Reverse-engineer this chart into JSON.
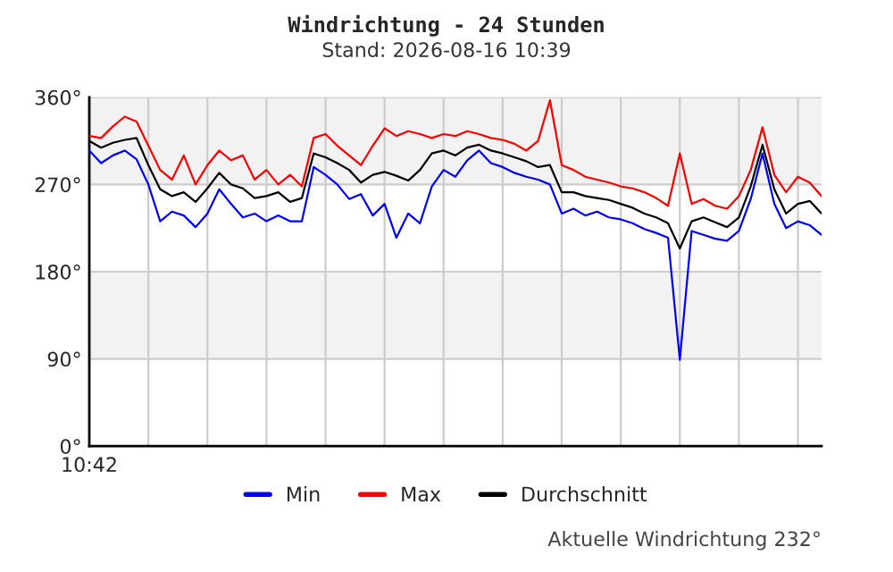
{
  "chart_data": {
    "type": "line",
    "title": "Windrichtung - 24 Stunden",
    "subtitle": "Stand: 2026-08-16 10:39",
    "annotations": [
      "10:42",
      "Aktuelle Windrichtung 232°"
    ],
    "categories": [
      null,
      null,
      null,
      null,
      null,
      null,
      null,
      null,
      null,
      null,
      null,
      null,
      null,
      null,
      null,
      null,
      null,
      null,
      null,
      null,
      null,
      null,
      null,
      null,
      null,
      null,
      null,
      null,
      null,
      null,
      null,
      null,
      null,
      null,
      null,
      null,
      null,
      null,
      null,
      null,
      null,
      null,
      null,
      null,
      null,
      null,
      null,
      null,
      null,
      null,
      null,
      null,
      null,
      null,
      null,
      null,
      null,
      null,
      null,
      null,
      null,
      null,
      null
    ],
    "series": [
      {
        "name": "Min",
        "color": "#0000ff",
        "values": [
          305,
          292,
          300,
          305,
          296,
          270,
          232,
          242,
          238,
          226,
          240,
          265,
          250,
          236,
          240,
          232,
          238,
          232,
          232,
          288,
          280,
          270,
          255,
          260,
          238,
          250,
          215,
          240,
          230,
          268,
          285,
          278,
          295,
          305,
          292,
          288,
          282,
          278,
          275,
          270,
          240,
          245,
          238,
          242,
          236,
          234,
          230,
          224,
          220,
          215,
          89,
          222,
          218,
          214,
          212,
          222,
          255,
          302,
          250,
          225,
          232,
          228,
          218
        ]
      },
      {
        "name": "Max",
        "color": "#ff0000",
        "values": [
          320,
          318,
          330,
          340,
          335,
          310,
          285,
          275,
          300,
          270,
          290,
          305,
          295,
          300,
          275,
          285,
          270,
          280,
          268,
          318,
          322,
          310,
          300,
          290,
          310,
          328,
          320,
          325,
          322,
          318,
          322,
          320,
          325,
          322,
          318,
          316,
          312,
          305,
          315,
          357,
          290,
          285,
          278,
          275,
          272,
          268,
          266,
          262,
          256,
          248,
          302,
          250,
          255,
          248,
          245,
          258,
          285,
          329,
          280,
          262,
          278,
          272,
          258
        ]
      },
      {
        "name": "Durchschnitt",
        "color": "#000000",
        "values": [
          315,
          308,
          313,
          316,
          318,
          290,
          265,
          258,
          262,
          252,
          266,
          282,
          270,
          266,
          256,
          258,
          262,
          252,
          256,
          302,
          298,
          292,
          285,
          272,
          280,
          283,
          279,
          274,
          285,
          302,
          305,
          300,
          308,
          311,
          305,
          302,
          298,
          294,
          288,
          290,
          262,
          262,
          258,
          256,
          254,
          250,
          246,
          240,
          236,
          230,
          204,
          232,
          236,
          231,
          226,
          236,
          268,
          311,
          265,
          240,
          250,
          253,
          240
        ]
      }
    ],
    "ylim": [
      0,
      360
    ],
    "yticks": [
      {
        "value": 0,
        "label": "0°"
      },
      {
        "value": 90,
        "label": "90°"
      },
      {
        "value": 180,
        "label": "180°"
      },
      {
        "value": 270,
        "label": "270°"
      },
      {
        "value": 360,
        "label": "360°"
      }
    ],
    "bands": [
      {
        "axis": "y",
        "from": 90,
        "to": 180,
        "color": "#f2f2f2"
      },
      {
        "axis": "y",
        "from": 270,
        "to": 360,
        "color": "#f2f2f2"
      }
    ],
    "grid": true,
    "legend": "bottom",
    "line_style": "solid",
    "marker": "none"
  }
}
